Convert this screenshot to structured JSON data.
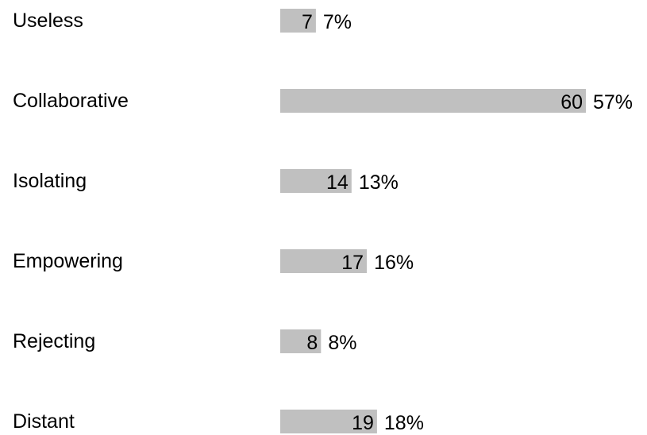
{
  "chart_data": {
    "type": "bar",
    "orientation": "horizontal",
    "title": "",
    "xlabel": "",
    "ylabel": "",
    "bar_color": "#c0c0c0",
    "categories": [
      "Useless",
      "Collaborative",
      "Isolating",
      "Empowering",
      "Rejecting",
      "Distant"
    ],
    "values": [
      7,
      60,
      14,
      17,
      8,
      19
    ],
    "value_labels": [
      "7",
      "60",
      "14",
      "17",
      "8",
      "19"
    ],
    "percent_labels": [
      "7%",
      "57%",
      "13%",
      "16%",
      "8%",
      "18%"
    ],
    "xlim": [
      0,
      60
    ],
    "grid": false,
    "legend": "none"
  }
}
